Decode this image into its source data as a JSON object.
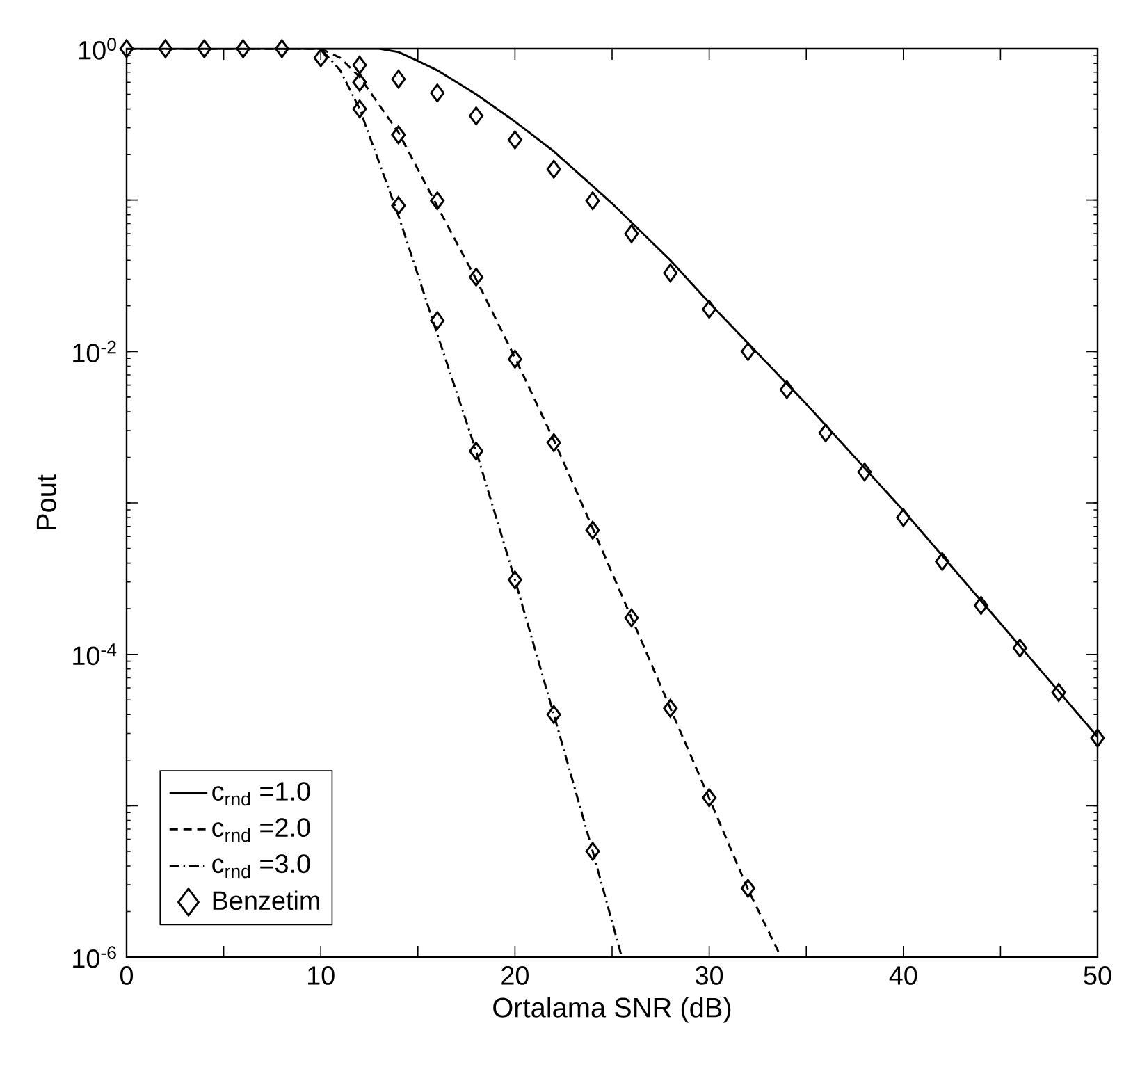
{
  "chart_data": {
    "type": "line",
    "xlabel": "Ortalama SNR (dB)",
    "ylabel": "Pout",
    "log": "y",
    "legend": "bottom left",
    "xlim": [
      0,
      50
    ],
    "ylim": [
      1e-06,
      1
    ],
    "xticks": [
      0,
      {
        "value": 5,
        "label": null
      },
      10,
      {
        "value": 15,
        "label": null
      },
      20,
      {
        "value": 25,
        "label": null
      },
      30,
      {
        "value": 35,
        "label": null
      },
      40,
      {
        "value": 45,
        "label": null
      },
      50
    ],
    "yticks": [
      {
        "value": 1e-06,
        "label": "10$^{-6}$"
      },
      {
        "value": 1e-05,
        "label": null
      },
      {
        "value": 0.0001,
        "label": "10$^{-4}$"
      },
      {
        "value": 0.001,
        "label": null
      },
      {
        "value": 0.01,
        "label": "10$^{-2}$"
      },
      {
        "value": 0.1,
        "label": null
      },
      {
        "value": 1,
        "label": "10$^{0}$"
      }
    ],
    "series": [
      {
        "name": "c$_{rnd}$ =1.0",
        "color": "#000000",
        "line_style": "solid",
        "x": [
          0,
          5,
          10,
          13,
          14,
          15,
          16,
          18,
          20,
          22,
          25,
          28,
          30,
          35,
          40,
          45,
          50
        ],
        "values": [
          1,
          1,
          1,
          1,
          0.95,
          0.83,
          0.72,
          0.5,
          0.33,
          0.21,
          0.095,
          0.04,
          0.021,
          0.0045,
          0.00089,
          0.00016,
          2.85e-05
        ]
      },
      {
        "name": "c$_{rnd}$ =2.0",
        "color": "#000000",
        "line_style": "dashed",
        "x": [
          0,
          10,
          11,
          12,
          14,
          16,
          18,
          20,
          22,
          24,
          26,
          28,
          30,
          32,
          33.7
        ],
        "values": [
          1,
          1,
          0.87,
          0.65,
          0.28,
          0.091,
          0.03,
          0.0091,
          0.0026,
          0.00068,
          0.000174,
          4.4e-05,
          1.12e-05,
          2.8e-06,
          1e-06
        ]
      },
      {
        "name": "c$_{rnd}$ =3.0",
        "color": "#000000",
        "line_style": "dashdot",
        "x": [
          0,
          10,
          11,
          12,
          14,
          16,
          18,
          20,
          22,
          24,
          25.5
        ],
        "values": [
          1,
          1,
          0.72,
          0.4,
          0.079,
          0.013,
          0.0022,
          0.00031,
          4e-05,
          5e-06,
          1e-06
        ]
      },
      {
        "name": "Benzetim",
        "type": "scatter",
        "color": "#000000",
        "marker": "diamond",
        "x": [
          0,
          2,
          4,
          6,
          8,
          10,
          12,
          14,
          16,
          18,
          20,
          22,
          24,
          26,
          28,
          30,
          32,
          34,
          36,
          38,
          40,
          42,
          44,
          46,
          48,
          50,
          12,
          14,
          16,
          18,
          20,
          22,
          24,
          26,
          28,
          30,
          32,
          12,
          14,
          16,
          18,
          20,
          22,
          24
        ],
        "values": [
          1,
          1,
          1,
          1,
          1,
          0.87,
          0.78,
          0.63,
          0.51,
          0.36,
          0.25,
          0.16,
          0.099,
          0.06,
          0.033,
          0.019,
          0.01,
          0.0056,
          0.0029,
          0.0016,
          0.0008,
          0.00041,
          0.00021,
          0.00011,
          5.6e-05,
          2.8e-05,
          0.6,
          0.27,
          0.099,
          0.031,
          0.0089,
          0.0025,
          0.00066,
          0.000174,
          4.4e-05,
          1.13e-05,
          2.85e-06,
          0.4,
          0.092,
          0.016,
          0.0022,
          0.00031,
          4e-05,
          5e-06
        ]
      }
    ]
  }
}
